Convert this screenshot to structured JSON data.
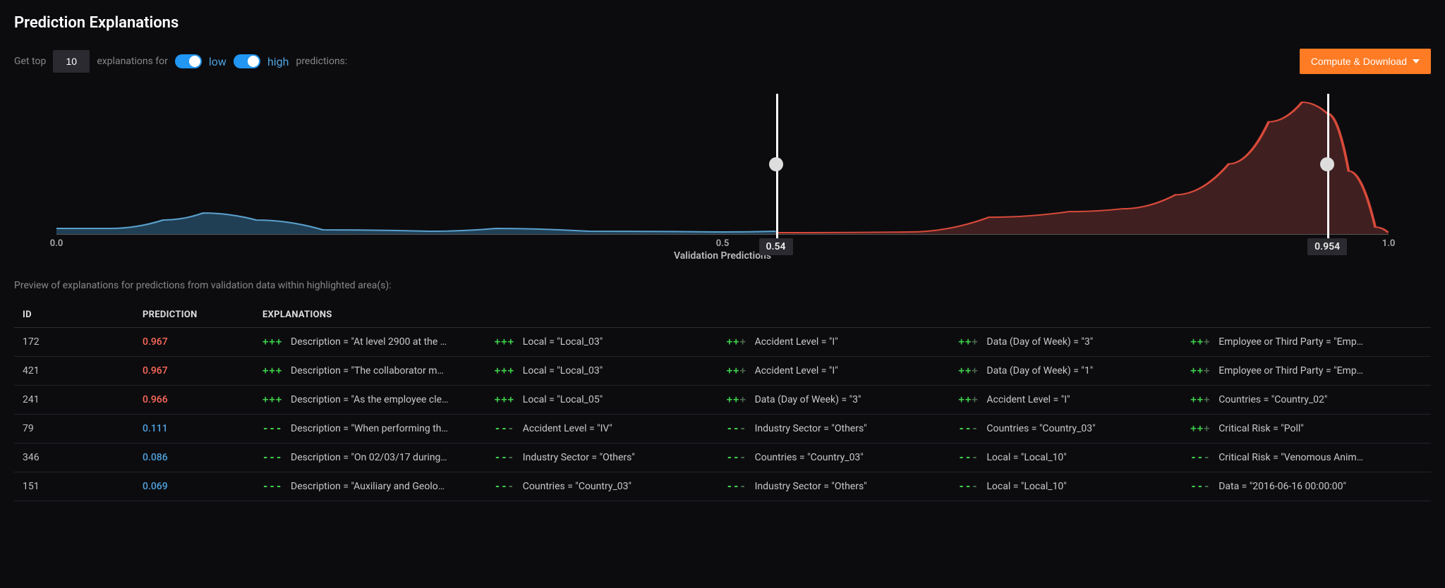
{
  "title": "Prediction Explanations",
  "controls": {
    "get_top_label": "Get top",
    "top_value": "10",
    "explanations_for": "explanations for",
    "low_label": "low",
    "high_label": "high",
    "predictions_suffix": "predictions:",
    "low_toggle_on": true,
    "high_toggle_on": true,
    "compute_button": "Compute & Download"
  },
  "chart": {
    "type": "density",
    "xlim": [
      0.0,
      1.0
    ],
    "xticks": [
      0.0,
      0.5,
      1.0
    ],
    "xtick_labels": [
      "0.0",
      "0.5",
      "1.0"
    ],
    "axis_label": "Validation Predictions",
    "low_fill_color": "#2d5a7a",
    "low_stroke_color": "#5aa0cc",
    "high_fill_color": "#6b3030",
    "high_stroke_color": "#d84a3a",
    "slider_low": 0.54,
    "slider_high": 0.954,
    "slider_low_label": "0.54",
    "slider_high_label": "0.954",
    "low_curve": [
      {
        "x": 0.0,
        "y": 0.96
      },
      {
        "x": 0.04,
        "y": 0.96
      },
      {
        "x": 0.08,
        "y": 0.9
      },
      {
        "x": 0.11,
        "y": 0.85
      },
      {
        "x": 0.15,
        "y": 0.9
      },
      {
        "x": 0.2,
        "y": 0.97
      },
      {
        "x": 0.28,
        "y": 0.98
      },
      {
        "x": 0.33,
        "y": 0.96
      },
      {
        "x": 0.4,
        "y": 0.98
      },
      {
        "x": 0.5,
        "y": 0.985
      },
      {
        "x": 0.54,
        "y": 0.98
      }
    ],
    "high_curve": [
      {
        "x": 0.54,
        "y": 0.99
      },
      {
        "x": 0.64,
        "y": 0.985
      },
      {
        "x": 0.7,
        "y": 0.88
      },
      {
        "x": 0.76,
        "y": 0.84
      },
      {
        "x": 0.8,
        "y": 0.82
      },
      {
        "x": 0.84,
        "y": 0.72
      },
      {
        "x": 0.88,
        "y": 0.5
      },
      {
        "x": 0.91,
        "y": 0.2
      },
      {
        "x": 0.935,
        "y": 0.06
      },
      {
        "x": 0.954,
        "y": 0.14
      },
      {
        "x": 0.97,
        "y": 0.55
      },
      {
        "x": 0.99,
        "y": 0.95
      },
      {
        "x": 1.0,
        "y": 0.99
      }
    ]
  },
  "preview_caption": "Preview of explanations for predictions from validation data within highlighted area(s):",
  "table": {
    "headers": {
      "id": "ID",
      "prediction": "PREDICTION",
      "explanations": "EXPLANATIONS"
    },
    "rows": [
      {
        "id": "172",
        "prediction": "0.967",
        "pred_class": "high",
        "explanations": [
          {
            "ind": "+++",
            "dim": 0,
            "text": "Description = \"At level 2900 at the …"
          },
          {
            "ind": "+++",
            "dim": 0,
            "text": "Local = \"Local_03\""
          },
          {
            "ind": "++",
            "dim": 1,
            "text": "Accident Level = \"I\""
          },
          {
            "ind": "++",
            "dim": 1,
            "text": "Data (Day of Week) = \"3\""
          },
          {
            "ind": "++",
            "dim": 1,
            "text": "Employee or Third Party = \"Emp…"
          }
        ]
      },
      {
        "id": "421",
        "prediction": "0.967",
        "pred_class": "high",
        "explanations": [
          {
            "ind": "+++",
            "dim": 0,
            "text": "Description = \"The collaborator m…"
          },
          {
            "ind": "+++",
            "dim": 0,
            "text": "Local = \"Local_03\""
          },
          {
            "ind": "++",
            "dim": 1,
            "text": "Accident Level = \"I\""
          },
          {
            "ind": "++",
            "dim": 1,
            "text": "Data (Day of Week) = \"1\""
          },
          {
            "ind": "++",
            "dim": 1,
            "text": "Employee or Third Party = \"Emp…"
          }
        ]
      },
      {
        "id": "241",
        "prediction": "0.966",
        "pred_class": "high",
        "explanations": [
          {
            "ind": "+++",
            "dim": 0,
            "text": "Description = \"As the employee cle…"
          },
          {
            "ind": "+++",
            "dim": 0,
            "text": "Local = \"Local_05\""
          },
          {
            "ind": "++",
            "dim": 1,
            "text": "Data (Day of Week) = \"3\""
          },
          {
            "ind": "++",
            "dim": 1,
            "text": "Accident Level = \"I\""
          },
          {
            "ind": "++",
            "dim": 1,
            "text": "Countries = \"Country_02\""
          }
        ]
      },
      {
        "id": "79",
        "prediction": "0.111",
        "pred_class": "low",
        "explanations": [
          {
            "ind": "---",
            "dim": 0,
            "text": "Description = \"When performing th…"
          },
          {
            "ind": "--",
            "dim": 1,
            "text": "Accident Level = \"IV\""
          },
          {
            "ind": "--",
            "dim": 1,
            "text": "Industry Sector = \"Others\""
          },
          {
            "ind": "--",
            "dim": 1,
            "text": "Countries = \"Country_03\""
          },
          {
            "ind": "++",
            "dim": 1,
            "text": "Critical Risk = \"Poll\""
          }
        ]
      },
      {
        "id": "346",
        "prediction": "0.086",
        "pred_class": "low",
        "explanations": [
          {
            "ind": "---",
            "dim": 0,
            "text": "Description = \"On 02/03/17 during…"
          },
          {
            "ind": "--",
            "dim": 1,
            "text": "Industry Sector = \"Others\""
          },
          {
            "ind": "--",
            "dim": 1,
            "text": "Countries = \"Country_03\""
          },
          {
            "ind": "--",
            "dim": 1,
            "text": "Local = \"Local_10\""
          },
          {
            "ind": "--",
            "dim": 1,
            "text": "Critical Risk = \"Venomous Anim…"
          }
        ]
      },
      {
        "id": "151",
        "prediction": "0.069",
        "pred_class": "low",
        "explanations": [
          {
            "ind": "---",
            "dim": 0,
            "text": "Description = \"Auxiliary and Geolo…"
          },
          {
            "ind": "--",
            "dim": 1,
            "text": "Countries = \"Country_03\""
          },
          {
            "ind": "--",
            "dim": 1,
            "text": "Industry Sector = \"Others\""
          },
          {
            "ind": "--",
            "dim": 1,
            "text": "Local = \"Local_10\""
          },
          {
            "ind": "--",
            "dim": 1,
            "text": "Data = \"2016-06-16 00:00:00\""
          }
        ]
      }
    ]
  }
}
